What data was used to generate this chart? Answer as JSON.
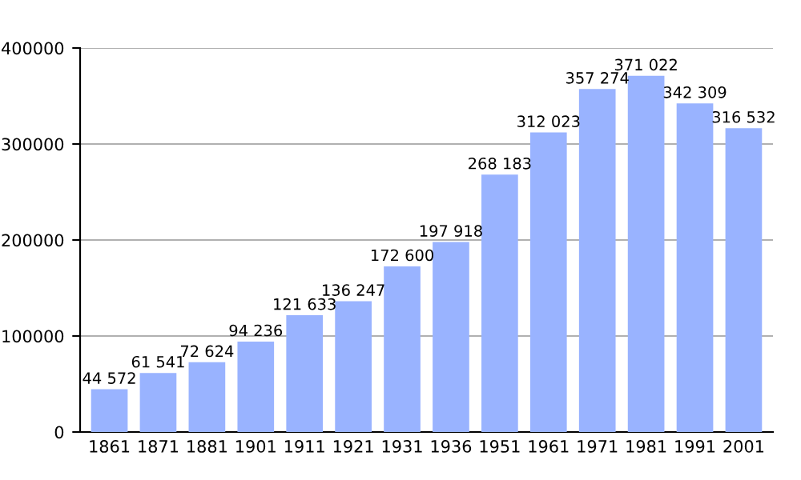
{
  "chart_data": {
    "type": "bar",
    "categories": [
      "1861",
      "1871",
      "1881",
      "1901",
      "1911",
      "1921",
      "1931",
      "1936",
      "1951",
      "1961",
      "1971",
      "1981",
      "1991",
      "2001"
    ],
    "values": [
      44572,
      61541,
      72624,
      94236,
      121633,
      136247,
      172600,
      197918,
      268183,
      312023,
      357274,
      371022,
      342309,
      316532
    ],
    "value_labels": [
      "44 572",
      "61 541",
      "72 624",
      "94 236",
      "121 633",
      "136 247",
      "172 600",
      "197 918",
      "268 183",
      "312 023",
      "357 274",
      "371 022",
      "342 309",
      "316 532"
    ],
    "color": "#99b3ff",
    "ylim": [
      0,
      400000
    ],
    "yticks": [
      0,
      100000,
      200000,
      300000,
      400000
    ],
    "grid": "y"
  }
}
